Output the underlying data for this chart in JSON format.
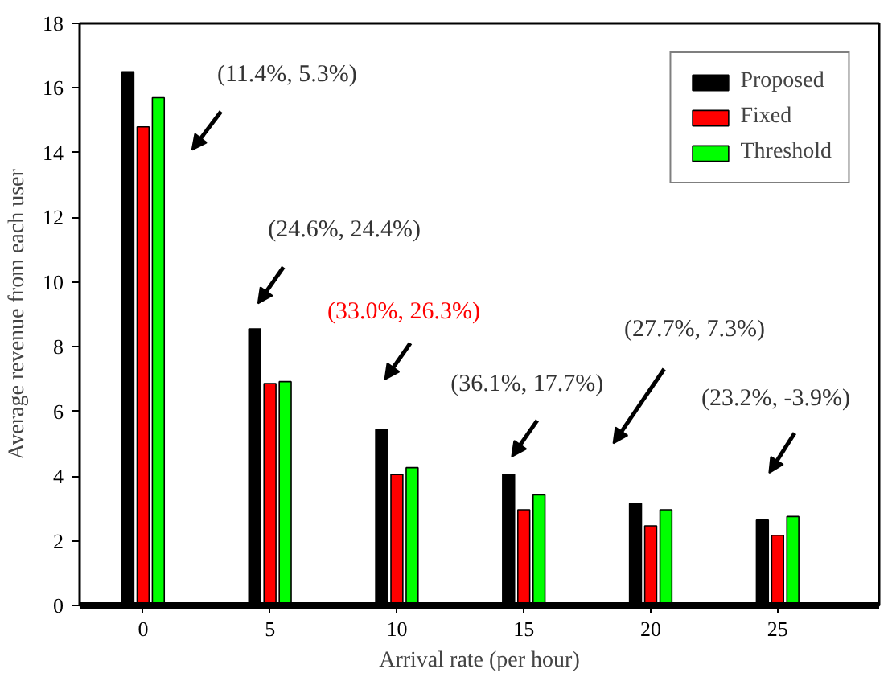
{
  "chart_data": {
    "type": "bar",
    "xlabel": "Arrival rate (per hour)",
    "ylabel": "Average revenue from each user",
    "x": [
      0,
      5,
      10,
      15,
      20,
      25
    ],
    "series": [
      {
        "name": "Proposed",
        "color": "#000000",
        "values": [
          16.5,
          8.55,
          5.44,
          4.06,
          3.15,
          2.64
        ]
      },
      {
        "name": "Fixed",
        "color": "#ff0000",
        "values": [
          14.8,
          6.86,
          4.05,
          2.96,
          2.46,
          2.17
        ]
      },
      {
        "name": "Threshold",
        "color": "#00ff00",
        "values": [
          15.7,
          6.92,
          4.26,
          3.42,
          2.96,
          2.75
        ]
      }
    ],
    "xlim": [
      -2.5,
      29
    ],
    "xticks": [
      0,
      5,
      10,
      15,
      20,
      25
    ],
    "ylim": [
      0,
      18
    ],
    "yticks": [
      0,
      2,
      4,
      6,
      8,
      10,
      12,
      14,
      16,
      18
    ],
    "grid": false,
    "legend": "top right",
    "annotations": [
      "(11.4%, 5.3%)",
      "(24.6%, 24.4%)",
      "(33.0%, 26.3%)",
      "(36.1%, 17.7%)",
      "(27.7%, 7.3%)",
      "(23.2%, -3.9%)"
    ]
  }
}
